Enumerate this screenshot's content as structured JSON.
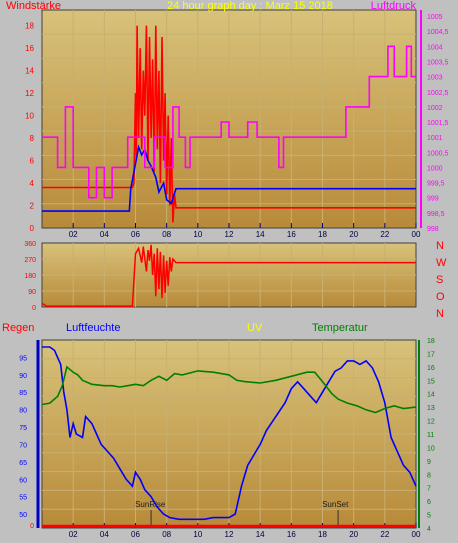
{
  "colors": {
    "background": "#c0c0c0",
    "plot_top": "#d8c27a",
    "plot_bottom": "#b88a3a",
    "grid": "#c8b070",
    "wind_axis": "#ff0000",
    "pressure_axis": "#ff00ff",
    "title": "#ffff00",
    "rain": "#ff0000",
    "humidity": "#0000ff",
    "uv": "#ffff00",
    "temperature": "#008000",
    "hour_tick": "#000080"
  },
  "chart_data": [
    {
      "id": "wind-pressure",
      "type": "line",
      "title": "24 hour graph day : Marz 15 2018",
      "ylabel_left": "Windstärke",
      "ylabel_right": "Luftdruck",
      "x_ticks": [
        "02",
        "04",
        "06",
        "08",
        "10",
        "12",
        "14",
        "16",
        "18",
        "20",
        "22",
        "00"
      ],
      "y_left_ticks": [
        "0",
        "2",
        "4",
        "6",
        "8",
        "10",
        "12",
        "14",
        "16",
        "18"
      ],
      "y_left_range": [
        0,
        19.4
      ],
      "y_right_ticks": [
        "998",
        "998,5",
        "999",
        "999,5",
        "1000",
        "1000,5",
        "1001",
        "1001,5",
        "1002",
        "1002,5",
        "1003",
        "1003,5",
        "1004",
        "1004,5",
        "1005"
      ],
      "y_right_range": [
        998,
        1005.2
      ],
      "x_range": [
        0,
        24
      ],
      "series": [
        {
          "axis": "left",
          "color": "#ff0000",
          "points": [
            [
              0,
              3.6
            ],
            [
              5.8,
              3.6
            ],
            [
              5.9,
              4
            ],
            [
              6.0,
              12
            ],
            [
              6.05,
              6
            ],
            [
              6.1,
              18
            ],
            [
              6.2,
              8
            ],
            [
              6.3,
              16
            ],
            [
              6.4,
              7
            ],
            [
              6.5,
              14
            ],
            [
              6.6,
              10
            ],
            [
              6.7,
              18
            ],
            [
              6.8,
              6
            ],
            [
              6.9,
              17
            ],
            [
              7.0,
              8
            ],
            [
              7.1,
              15
            ],
            [
              7.2,
              5
            ],
            [
              7.3,
              18
            ],
            [
              7.4,
              7
            ],
            [
              7.5,
              14
            ],
            [
              7.6,
              4
            ],
            [
              7.7,
              17
            ],
            [
              7.8,
              6
            ],
            [
              7.9,
              12
            ],
            [
              8.0,
              3
            ],
            [
              8.1,
              10
            ],
            [
              8.2,
              2
            ],
            [
              8.3,
              8
            ],
            [
              8.4,
              0.5
            ],
            [
              8.5,
              3
            ],
            [
              8.6,
              1.8
            ],
            [
              24,
              1.8
            ]
          ]
        },
        {
          "axis": "left",
          "color": "#0000ff",
          "points": [
            [
              0,
              1.5
            ],
            [
              5.6,
              1.5
            ],
            [
              5.7,
              3.5
            ],
            [
              6.2,
              7.2
            ],
            [
              6.4,
              6.5
            ],
            [
              6.6,
              7
            ],
            [
              6.8,
              6
            ],
            [
              7.0,
              5.5
            ],
            [
              7.3,
              4.5
            ],
            [
              7.5,
              3.2
            ],
            [
              7.8,
              4
            ],
            [
              8.0,
              2.5
            ],
            [
              8.3,
              2.2
            ],
            [
              8.6,
              3.5
            ],
            [
              24,
              3.5
            ]
          ]
        },
        {
          "axis": "right",
          "color": "#ff00ff",
          "points": [
            [
              0,
              1001
            ],
            [
              1,
              1001
            ],
            [
              1,
              1000
            ],
            [
              1.5,
              1000
            ],
            [
              1.5,
              1002
            ],
            [
              2,
              1002
            ],
            [
              2,
              1000
            ],
            [
              3,
              1000
            ],
            [
              3,
              999
            ],
            [
              3.5,
              999
            ],
            [
              3.5,
              1000
            ],
            [
              4,
              1000
            ],
            [
              4,
              999
            ],
            [
              4.5,
              999
            ],
            [
              4.5,
              1000
            ],
            [
              5.5,
              1000
            ],
            [
              5.5,
              1001
            ],
            [
              6.6,
              1001
            ],
            [
              6.6,
              1000
            ],
            [
              7.2,
              1000
            ],
            [
              7.2,
              1001
            ],
            [
              7.9,
              1001
            ],
            [
              7.9,
              1000
            ],
            [
              8.4,
              1000
            ],
            [
              8.4,
              1002
            ],
            [
              8.8,
              1002
            ],
            [
              8.8,
              1001
            ],
            [
              9.2,
              1001
            ],
            [
              9.2,
              1000
            ],
            [
              9.5,
              1000
            ],
            [
              9.5,
              1001
            ],
            [
              11.5,
              1001
            ],
            [
              11.5,
              1001.5
            ],
            [
              12,
              1001.5
            ],
            [
              12,
              1001
            ],
            [
              13.2,
              1001
            ],
            [
              13.2,
              1001.5
            ],
            [
              13.8,
              1001.5
            ],
            [
              13.8,
              1001
            ],
            [
              15.2,
              1001
            ],
            [
              15.2,
              1000
            ],
            [
              15.5,
              1000
            ],
            [
              15.5,
              1001
            ],
            [
              19.5,
              1001
            ],
            [
              19.5,
              1002
            ],
            [
              21,
              1002
            ],
            [
              21,
              1003
            ],
            [
              22.2,
              1003
            ],
            [
              22.2,
              1004
            ],
            [
              22.6,
              1004
            ],
            [
              22.6,
              1003
            ],
            [
              23.4,
              1003
            ],
            [
              23.4,
              1004
            ],
            [
              23.7,
              1004
            ],
            [
              23.7,
              1003
            ],
            [
              24,
              1003
            ]
          ]
        }
      ]
    },
    {
      "id": "wind-direction",
      "type": "line",
      "y_ticks": [
        "0",
        "90",
        "180",
        "270",
        "360"
      ],
      "y_range": [
        0,
        360
      ],
      "x_range": [
        0,
        24
      ],
      "direction_labels": [
        "N",
        "W",
        "S",
        "O",
        "N"
      ],
      "series": [
        {
          "color": "#ff0000",
          "points": [
            [
              0,
              20
            ],
            [
              0.3,
              5
            ],
            [
              5.8,
              5
            ],
            [
              6.0,
              300
            ],
            [
              6.2,
              330
            ],
            [
              6.4,
              250
            ],
            [
              6.5,
              340
            ],
            [
              6.7,
              200
            ],
            [
              6.8,
              320
            ],
            [
              6.9,
              260
            ],
            [
              7.0,
              350
            ],
            [
              7.1,
              180
            ],
            [
              7.2,
              300
            ],
            [
              7.3,
              60
            ],
            [
              7.4,
              330
            ],
            [
              7.5,
              100
            ],
            [
              7.6,
              310
            ],
            [
              7.7,
              50
            ],
            [
              7.8,
              290
            ],
            [
              7.9,
              80
            ],
            [
              8.0,
              260
            ],
            [
              8.1,
              120
            ],
            [
              8.2,
              280
            ],
            [
              8.3,
              200
            ],
            [
              8.4,
              270
            ],
            [
              8.6,
              250
            ],
            [
              24,
              250
            ]
          ]
        }
      ]
    },
    {
      "id": "climate",
      "type": "line",
      "legend": [
        "Regen",
        "Luftfeuchte",
        "UV",
        "Temperatur"
      ],
      "y_humidity_ticks": [
        "50",
        "55",
        "60",
        "65",
        "70",
        "75",
        "80",
        "85",
        "90",
        "95"
      ],
      "y_humidity_range": [
        46,
        100
      ],
      "y_rain_ticks": [
        "0"
      ],
      "y_temp_ticks": [
        "4",
        "5",
        "6",
        "7",
        "8",
        "9",
        "10",
        "11",
        "12",
        "13",
        "14",
        "15",
        "16",
        "17",
        "18"
      ],
      "y_temp_range": [
        4,
        18
      ],
      "x_range": [
        0,
        24
      ],
      "annotations": [
        {
          "label": "SunRise",
          "x": 7
        },
        {
          "label": "SunSet",
          "x": 19
        }
      ],
      "series": [
        {
          "name": "Regen",
          "color": "#ff0000",
          "axis": "humidity",
          "points": [
            [
              0,
              46.5
            ],
            [
              24,
              46.5
            ]
          ]
        },
        {
          "name": "Luftfeuchte",
          "color": "#0000ff",
          "axis": "humidity",
          "points": [
            [
              0,
              98
            ],
            [
              0.5,
              98
            ],
            [
              0.8,
              97
            ],
            [
              1.0,
              95
            ],
            [
              1.2,
              93
            ],
            [
              1.4,
              85
            ],
            [
              1.6,
              80
            ],
            [
              1.8,
              72
            ],
            [
              2.0,
              76
            ],
            [
              2.2,
              73
            ],
            [
              2.6,
              72
            ],
            [
              2.8,
              78
            ],
            [
              3.2,
              76
            ],
            [
              3.6,
              72
            ],
            [
              3.8,
              70
            ],
            [
              4.2,
              68
            ],
            [
              4.6,
              66
            ],
            [
              5.0,
              63
            ],
            [
              5.4,
              60
            ],
            [
              5.8,
              58
            ],
            [
              6.0,
              62
            ],
            [
              6.3,
              60
            ],
            [
              6.6,
              57
            ],
            [
              7.0,
              55
            ],
            [
              7.4,
              52
            ],
            [
              7.8,
              50
            ],
            [
              8.2,
              49
            ],
            [
              8.8,
              48.5
            ],
            [
              9.5,
              48.5
            ],
            [
              10.4,
              48.5
            ],
            [
              11,
              49
            ],
            [
              12,
              49
            ],
            [
              12.4,
              50
            ],
            [
              12.8,
              58
            ],
            [
              13.2,
              64
            ],
            [
              13.6,
              67
            ],
            [
              14.0,
              70
            ],
            [
              14.4,
              74
            ],
            [
              15.0,
              78
            ],
            [
              15.6,
              82
            ],
            [
              16.0,
              86
            ],
            [
              16.4,
              88
            ],
            [
              16.8,
              86
            ],
            [
              17.2,
              84
            ],
            [
              17.6,
              82
            ],
            [
              18.0,
              85
            ],
            [
              18.4,
              88
            ],
            [
              18.8,
              91
            ],
            [
              19.2,
              92
            ],
            [
              19.6,
              94
            ],
            [
              20.0,
              94
            ],
            [
              20.4,
              93
            ],
            [
              20.8,
              94
            ],
            [
              21.2,
              92
            ],
            [
              21.6,
              88
            ],
            [
              22.0,
              82
            ],
            [
              22.4,
              72
            ],
            [
              22.8,
              68
            ],
            [
              23.2,
              64
            ],
            [
              23.6,
              62
            ],
            [
              24,
              58
            ]
          ]
        },
        {
          "name": "Temperatur",
          "color": "#008000",
          "axis": "temp",
          "points": [
            [
              0,
              13.2
            ],
            [
              0.5,
              13.3
            ],
            [
              1.0,
              13.8
            ],
            [
              1.3,
              14.6
            ],
            [
              1.6,
              16.0
            ],
            [
              2.0,
              15.6
            ],
            [
              2.3,
              15.4
            ],
            [
              2.6,
              15.0
            ],
            [
              3.2,
              14.7
            ],
            [
              4.0,
              14.6
            ],
            [
              4.5,
              14.6
            ],
            [
              5.0,
              14.5
            ],
            [
              5.5,
              14.6
            ],
            [
              6.0,
              14.7
            ],
            [
              6.5,
              14.6
            ],
            [
              7.0,
              15.0
            ],
            [
              7.5,
              15.3
            ],
            [
              8.0,
              15.0
            ],
            [
              8.5,
              15.5
            ],
            [
              9.0,
              15.4
            ],
            [
              10.0,
              15.7
            ],
            [
              11,
              15.6
            ],
            [
              12,
              15.4
            ],
            [
              12.5,
              15.0
            ],
            [
              13,
              14.9
            ],
            [
              14,
              14.8
            ],
            [
              15,
              15.0
            ],
            [
              16,
              15.3
            ],
            [
              17,
              15.6
            ],
            [
              17.5,
              15.6
            ],
            [
              18,
              14.9
            ],
            [
              18.6,
              14.0
            ],
            [
              19,
              13.6
            ],
            [
              19.6,
              13.3
            ],
            [
              20.2,
              13.1
            ],
            [
              20.8,
              12.8
            ],
            [
              21.4,
              12.6
            ],
            [
              22,
              12.9
            ],
            [
              22.6,
              13.1
            ],
            [
              23.2,
              12.9
            ],
            [
              24,
              13.0
            ]
          ]
        }
      ]
    }
  ]
}
